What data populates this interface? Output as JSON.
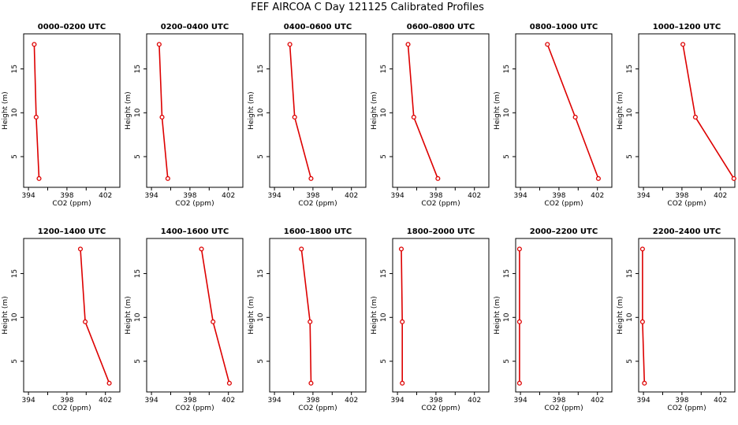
{
  "figure_title": "FEF AIRCOA C  Day 121125  Calibrated Profiles",
  "colors": {
    "series": "#dd0000",
    "axes": "#000000",
    "background": "#ffffff"
  },
  "chart_data": [
    {
      "type": "line",
      "title": "0000–0200 UTC",
      "xlabel": "CO2 (ppm)",
      "ylabel": "Height (m)",
      "xlim": [
        393.5,
        403.5
      ],
      "ylim": [
        1.5,
        19
      ],
      "xticks": [
        "394",
        "398",
        "402"
      ],
      "yticks": [
        "5",
        "10",
        "15"
      ],
      "points": [
        {
          "co2": 395.1,
          "height": 2.5
        },
        {
          "co2": 394.8,
          "height": 9.5
        },
        {
          "co2": 394.6,
          "height": 17.8
        }
      ]
    },
    {
      "type": "line",
      "title": "0200–0400 UTC",
      "xlabel": "CO2 (ppm)",
      "ylabel": "Height (m)",
      "xlim": [
        393.5,
        403.5
      ],
      "ylim": [
        1.5,
        19
      ],
      "xticks": [
        "394",
        "398",
        "402"
      ],
      "yticks": [
        "5",
        "10",
        "15"
      ],
      "points": [
        {
          "co2": 395.7,
          "height": 2.5
        },
        {
          "co2": 395.1,
          "height": 9.5
        },
        {
          "co2": 394.8,
          "height": 17.8
        }
      ]
    },
    {
      "type": "line",
      "title": "0400–0600 UTC",
      "xlabel": "CO2 (ppm)",
      "ylabel": "Height (m)",
      "xlim": [
        393.5,
        403.5
      ],
      "ylim": [
        1.5,
        19
      ],
      "xticks": [
        "394",
        "398",
        "402"
      ],
      "yticks": [
        "5",
        "10",
        "15"
      ],
      "points": [
        {
          "co2": 397.8,
          "height": 2.5
        },
        {
          "co2": 396.1,
          "height": 9.5
        },
        {
          "co2": 395.6,
          "height": 17.8
        }
      ]
    },
    {
      "type": "line",
      "title": "0600–0800 UTC",
      "xlabel": "CO2 (ppm)",
      "ylabel": "Height (m)",
      "xlim": [
        393.5,
        403.5
      ],
      "ylim": [
        1.5,
        19
      ],
      "xticks": [
        "394",
        "398",
        "402"
      ],
      "yticks": [
        "5",
        "10",
        "15"
      ],
      "points": [
        {
          "co2": 398.2,
          "height": 2.5
        },
        {
          "co2": 395.7,
          "height": 9.5
        },
        {
          "co2": 395.1,
          "height": 17.8
        }
      ]
    },
    {
      "type": "line",
      "title": "0800–1000 UTC",
      "xlabel": "CO2 (ppm)",
      "ylabel": "Height (m)",
      "xlim": [
        393.5,
        403.5
      ],
      "ylim": [
        1.5,
        19
      ],
      "xticks": [
        "394",
        "398",
        "402"
      ],
      "yticks": [
        "5",
        "10",
        "15"
      ],
      "points": [
        {
          "co2": 402.1,
          "height": 2.5
        },
        {
          "co2": 399.7,
          "height": 9.5
        },
        {
          "co2": 396.8,
          "height": 17.8
        }
      ]
    },
    {
      "type": "line",
      "title": "1000–1200 UTC",
      "xlabel": "CO2 (ppm)",
      "ylabel": "Height (m)",
      "xlim": [
        393.5,
        403.5
      ],
      "ylim": [
        1.5,
        19
      ],
      "xticks": [
        "394",
        "398",
        "402"
      ],
      "yticks": [
        "5",
        "10",
        "15"
      ],
      "points": [
        {
          "co2": 403.4,
          "height": 2.5
        },
        {
          "co2": 399.4,
          "height": 9.5
        },
        {
          "co2": 398.1,
          "height": 17.8
        }
      ]
    },
    {
      "type": "line",
      "title": "1200–1400 UTC",
      "xlabel": "CO2 (ppm)",
      "ylabel": "Height (m)",
      "xlim": [
        393.5,
        403.5
      ],
      "ylim": [
        1.5,
        19
      ],
      "xticks": [
        "394",
        "398",
        "402"
      ],
      "yticks": [
        "5",
        "10",
        "15"
      ],
      "points": [
        {
          "co2": 402.4,
          "height": 2.5
        },
        {
          "co2": 399.9,
          "height": 9.5
        },
        {
          "co2": 399.4,
          "height": 17.8
        }
      ]
    },
    {
      "type": "line",
      "title": "1400–1600 UTC",
      "xlabel": "CO2 (ppm)",
      "ylabel": "Height (m)",
      "xlim": [
        393.5,
        403.5
      ],
      "ylim": [
        1.5,
        19
      ],
      "xticks": [
        "394",
        "398",
        "402"
      ],
      "yticks": [
        "5",
        "10",
        "15"
      ],
      "points": [
        {
          "co2": 402.1,
          "height": 2.5
        },
        {
          "co2": 400.4,
          "height": 9.5
        },
        {
          "co2": 399.2,
          "height": 17.8
        }
      ]
    },
    {
      "type": "line",
      "title": "1600–1800 UTC",
      "xlabel": "CO2 (ppm)",
      "ylabel": "Height (m)",
      "xlim": [
        393.5,
        403.5
      ],
      "ylim": [
        1.5,
        19
      ],
      "xticks": [
        "394",
        "398",
        "402"
      ],
      "yticks": [
        "5",
        "10",
        "15"
      ],
      "points": [
        {
          "co2": 397.8,
          "height": 2.5
        },
        {
          "co2": 397.7,
          "height": 9.5
        },
        {
          "co2": 396.8,
          "height": 17.8
        }
      ]
    },
    {
      "type": "line",
      "title": "1800–2000 UTC",
      "xlabel": "CO2 (ppm)",
      "ylabel": "Height (m)",
      "xlim": [
        393.5,
        403.5
      ],
      "ylim": [
        1.5,
        19
      ],
      "xticks": [
        "394",
        "398",
        "402"
      ],
      "yticks": [
        "5",
        "10",
        "15"
      ],
      "points": [
        {
          "co2": 394.5,
          "height": 2.5
        },
        {
          "co2": 394.5,
          "height": 9.5
        },
        {
          "co2": 394.4,
          "height": 17.8
        }
      ]
    },
    {
      "type": "line",
      "title": "2000–2200 UTC",
      "xlabel": "CO2 (ppm)",
      "ylabel": "Height (m)",
      "xlim": [
        393.5,
        403.5
      ],
      "ylim": [
        1.5,
        19
      ],
      "xticks": [
        "394",
        "398",
        "402"
      ],
      "yticks": [
        "5",
        "10",
        "15"
      ],
      "points": [
        {
          "co2": 393.9,
          "height": 2.5
        },
        {
          "co2": 393.9,
          "height": 9.5
        },
        {
          "co2": 393.9,
          "height": 17.8
        }
      ]
    },
    {
      "type": "line",
      "title": "2200–2400 UTC",
      "xlabel": "CO2 (ppm)",
      "ylabel": "Height (m)",
      "xlim": [
        393.5,
        403.5
      ],
      "ylim": [
        1.5,
        19
      ],
      "xticks": [
        "394",
        "398",
        "402"
      ],
      "yticks": [
        "5",
        "10",
        "15"
      ],
      "points": [
        {
          "co2": 394.1,
          "height": 2.5
        },
        {
          "co2": 393.9,
          "height": 9.5
        },
        {
          "co2": 393.9,
          "height": 17.8
        }
      ]
    }
  ]
}
